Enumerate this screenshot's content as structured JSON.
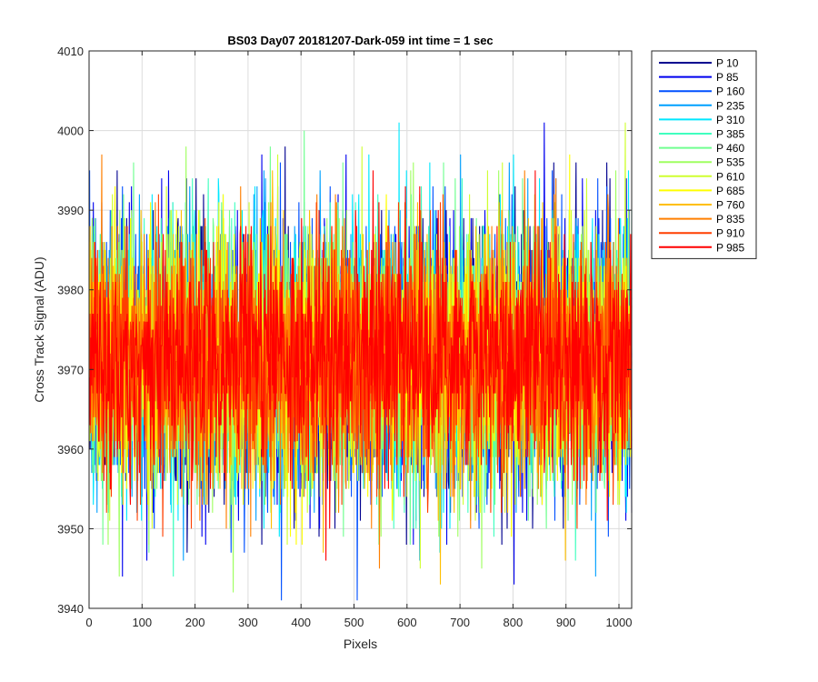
{
  "chart_data": {
    "type": "line",
    "title": "BS03 Day07 20181207-Dark-059 int time = 1 sec",
    "xlabel": "Pixels",
    "ylabel": "Cross Track Signal (ADU)",
    "xlim": [
      0,
      1024
    ],
    "ylim": [
      3940,
      4010
    ],
    "xticks": [
      0,
      100,
      200,
      300,
      400,
      500,
      600,
      700,
      800,
      900,
      1000
    ],
    "yticks": [
      3940,
      3950,
      3960,
      3970,
      3980,
      3990,
      4000,
      4010
    ],
    "grid": true,
    "legend_position": "outside-top-right",
    "n_points": 1024,
    "series": [
      {
        "name": "P 10",
        "color": "#00008F",
        "mean": 3971.5,
        "std": 8.5
      },
      {
        "name": "P 85",
        "color": "#0000EF",
        "mean": 3971.5,
        "std": 8.5
      },
      {
        "name": "P 160",
        "color": "#0050FF",
        "mean": 3971.5,
        "std": 8.4
      },
      {
        "name": "P 235",
        "color": "#00A0FF",
        "mean": 3971.5,
        "std": 8.3
      },
      {
        "name": "P 310",
        "color": "#00E8FF",
        "mean": 3971.5,
        "std": 8.2
      },
      {
        "name": "P 385",
        "color": "#40FFBF",
        "mean": 3971.5,
        "std": 8.2
      },
      {
        "name": "P 460",
        "color": "#70FF90",
        "mean": 3971.5,
        "std": 8.1
      },
      {
        "name": "P 535",
        "color": "#9FFF60",
        "mean": 3971.5,
        "std": 8.1
      },
      {
        "name": "P 610",
        "color": "#CFFF30",
        "mean": 3971.5,
        "std": 8.0
      },
      {
        "name": "P 685",
        "color": "#FFFF00",
        "mean": 3971.5,
        "std": 7.9
      },
      {
        "name": "P 760",
        "color": "#FFBF00",
        "mean": 3971.5,
        "std": 7.8
      },
      {
        "name": "P 835",
        "color": "#FF7F00",
        "mean": 3971.5,
        "std": 7.6
      },
      {
        "name": "P 910",
        "color": "#FF3F00",
        "mean": 3971.5,
        "std": 7.4
      },
      {
        "name": "P 985",
        "color": "#FF0000",
        "mean": 3971.5,
        "std": 7.2
      }
    ]
  }
}
